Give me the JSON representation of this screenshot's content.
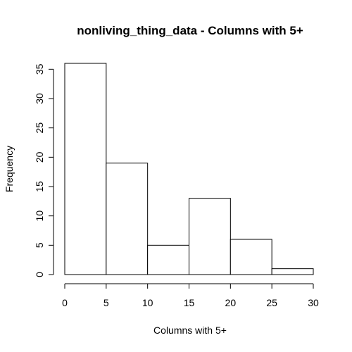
{
  "chart_data": {
    "type": "bar",
    "title": "nonliving_thing_data - Columns with 5+",
    "xlabel": "Columns with 5+",
    "ylabel": "Frequency",
    "bins": [
      [
        0,
        5
      ],
      [
        5,
        10
      ],
      [
        10,
        15
      ],
      [
        15,
        20
      ],
      [
        20,
        25
      ],
      [
        25,
        30
      ]
    ],
    "values": [
      36,
      19,
      5,
      13,
      6,
      1
    ],
    "xlim": [
      0,
      30
    ],
    "ylim": [
      0,
      36
    ],
    "x_ticks": [
      0,
      5,
      10,
      15,
      20,
      25,
      30
    ],
    "y_ticks": [
      0,
      5,
      10,
      15,
      20,
      25,
      30,
      35
    ],
    "grid": false,
    "bar_fill": "#ffffff",
    "bar_stroke": "#000000"
  }
}
